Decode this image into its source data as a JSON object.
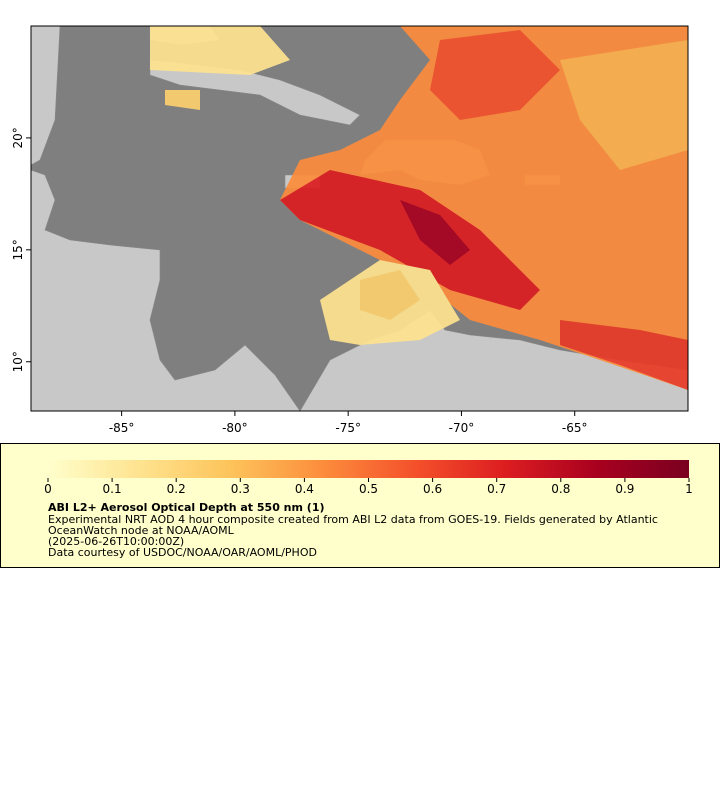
{
  "map": {
    "xlim": [
      -89,
      -60
    ],
    "ylim": [
      7.8,
      25
    ],
    "xticks": [
      {
        "value": -85,
        "label": "-85°"
      },
      {
        "value": -80,
        "label": "-80°"
      },
      {
        "value": -75,
        "label": "-75°"
      },
      {
        "value": -70,
        "label": "-70°"
      },
      {
        "value": -65,
        "label": "-65°"
      }
    ],
    "yticks": [
      {
        "value": 10,
        "label": "10°"
      },
      {
        "value": 15,
        "label": "15°"
      },
      {
        "value": 20,
        "label": "20°"
      }
    ]
  },
  "legend": {
    "colorbar": {
      "lim": [
        0,
        1
      ],
      "ticks": [
        0,
        0.1,
        0.2,
        0.3,
        0.4,
        0.5,
        0.6,
        0.7,
        0.8,
        0.9,
        1
      ],
      "colors": [
        "#ffffcc",
        "#fee38f",
        "#fdc35a",
        "#fc8d3c",
        "#f4512b",
        "#dc1d20",
        "#a8001f",
        "#7a0020"
      ]
    },
    "title": "ABI L2+ Aerosol Optical Depth at 550 nm (1)",
    "description": "Experimental NRT AOD 4 hour composite created from ABI L2 data from GOES-19. Fields generated by Atlantic OceanWatch node at NOAA/AOML",
    "time": "(2025-06-26T10:00:00Z)",
    "credit": "Data courtesy of USDOC/NOAA/OAR/AOML/PHOD"
  }
}
